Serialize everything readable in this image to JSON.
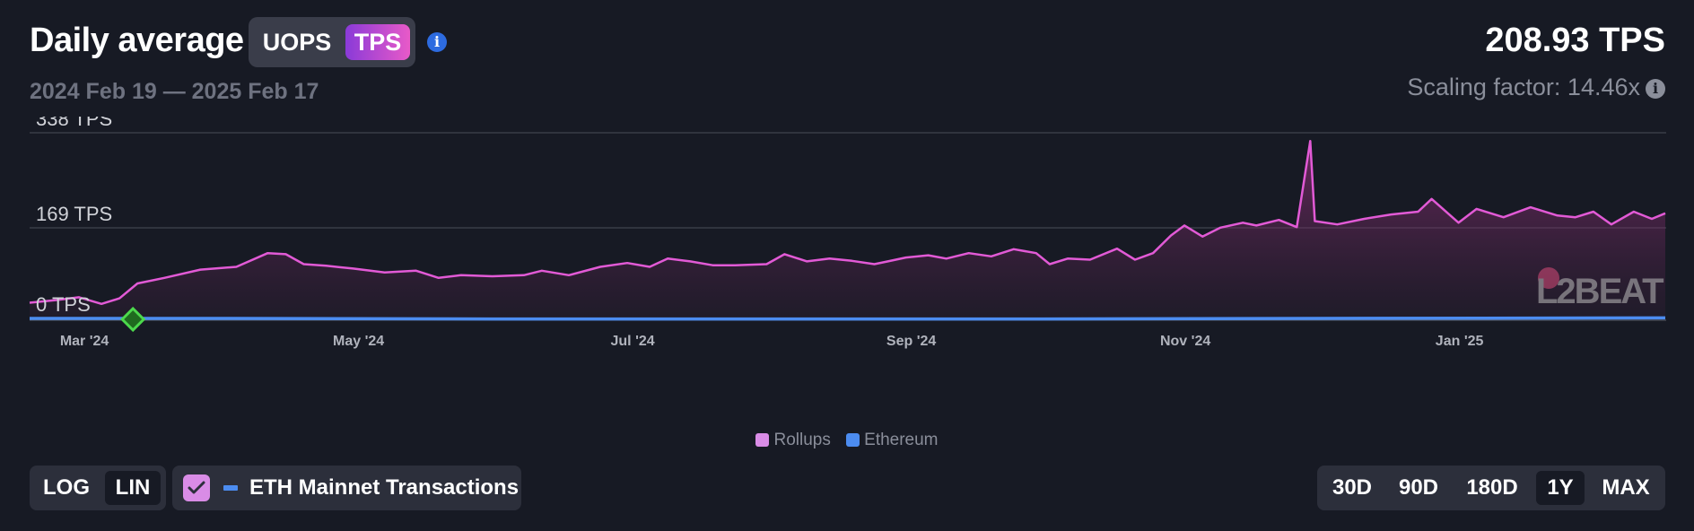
{
  "header": {
    "title": "Daily average",
    "unit_options": [
      "UOPS",
      "TPS"
    ],
    "selected_unit": "TPS",
    "date_range": "2024 Feb 19 — 2025 Feb 17",
    "value": "208.93 TPS",
    "scaling_factor": "Scaling factor: 14.46x",
    "info_icon": "info-icon"
  },
  "controls": {
    "scale_options": [
      "LOG",
      "LIN"
    ],
    "selected_scale": "LIN",
    "eth_toggle_label": "ETH Mainnet Transactions",
    "eth_toggle_checked": true,
    "range_options": [
      "30D",
      "90D",
      "180D",
      "1Y",
      "MAX"
    ],
    "selected_range": "1Y"
  },
  "colors": {
    "background": "#171a24",
    "rollups": "#e25ad6",
    "ethereum": "#4c8cf0",
    "accent_toggle": "#d98ce6",
    "milestone": "#4cd94c"
  },
  "chart_data": {
    "type": "area",
    "x_start": "2024-02-19",
    "x_end": "2025-02-17",
    "x_tick_labels": [
      {
        "date": "2024-03-01",
        "label": "Mar '24"
      },
      {
        "date": "2024-05-01",
        "label": "May '24"
      },
      {
        "date": "2024-07-01",
        "label": "Jul '24"
      },
      {
        "date": "2024-09-01",
        "label": "Sep '24"
      },
      {
        "date": "2024-11-01",
        "label": "Nov '24"
      },
      {
        "date": "2025-01-01",
        "label": "Jan '25"
      }
    ],
    "y_ticks": [
      {
        "value": 0,
        "label": "0 TPS"
      },
      {
        "value": 169,
        "label": "169 TPS"
      },
      {
        "value": 338,
        "label": "338 TPS"
      }
    ],
    "ylim": [
      0,
      338
    ],
    "grid": true,
    "legend_position": "bottom-center",
    "milestone": {
      "date": "2024-03-13",
      "icon": "milestone-diamond-icon"
    },
    "watermark": "L2BEAT",
    "series": [
      {
        "name": "Rollups",
        "color": "#e25ad6",
        "points": [
          [
            "2024-02-19",
            30
          ],
          [
            "2024-02-25",
            35
          ],
          [
            "2024-03-01",
            40
          ],
          [
            "2024-03-06",
            28
          ],
          [
            "2024-03-10",
            38
          ],
          [
            "2024-03-14",
            65
          ],
          [
            "2024-03-20",
            75
          ],
          [
            "2024-03-28",
            90
          ],
          [
            "2024-04-05",
            95
          ],
          [
            "2024-04-12",
            120
          ],
          [
            "2024-04-16",
            118
          ],
          [
            "2024-04-20",
            100
          ],
          [
            "2024-04-25",
            97
          ],
          [
            "2024-05-01",
            92
          ],
          [
            "2024-05-08",
            85
          ],
          [
            "2024-05-15",
            88
          ],
          [
            "2024-05-20",
            75
          ],
          [
            "2024-05-25",
            80
          ],
          [
            "2024-06-01",
            78
          ],
          [
            "2024-06-08",
            80
          ],
          [
            "2024-06-12",
            88
          ],
          [
            "2024-06-18",
            80
          ],
          [
            "2024-06-25",
            95
          ],
          [
            "2024-07-01",
            102
          ],
          [
            "2024-07-06",
            95
          ],
          [
            "2024-07-10",
            110
          ],
          [
            "2024-07-15",
            105
          ],
          [
            "2024-07-20",
            98
          ],
          [
            "2024-07-25",
            98
          ],
          [
            "2024-08-01",
            100
          ],
          [
            "2024-08-05",
            118
          ],
          [
            "2024-08-10",
            105
          ],
          [
            "2024-08-15",
            110
          ],
          [
            "2024-08-20",
            106
          ],
          [
            "2024-08-25",
            100
          ],
          [
            "2024-08-28",
            105
          ],
          [
            "2024-09-01",
            112
          ],
          [
            "2024-09-06",
            116
          ],
          [
            "2024-09-10",
            110
          ],
          [
            "2024-09-15",
            120
          ],
          [
            "2024-09-20",
            114
          ],
          [
            "2024-09-25",
            127
          ],
          [
            "2024-09-30",
            120
          ],
          [
            "2024-10-03",
            100
          ],
          [
            "2024-10-07",
            110
          ],
          [
            "2024-10-12",
            108
          ],
          [
            "2024-10-18",
            128
          ],
          [
            "2024-10-22",
            108
          ],
          [
            "2024-10-26",
            120
          ],
          [
            "2024-10-30",
            152
          ],
          [
            "2024-11-02",
            170
          ],
          [
            "2024-11-06",
            150
          ],
          [
            "2024-11-10",
            166
          ],
          [
            "2024-11-15",
            175
          ],
          [
            "2024-11-18",
            170
          ],
          [
            "2024-11-23",
            180
          ],
          [
            "2024-11-27",
            167
          ],
          [
            "2024-11-30",
            323
          ],
          [
            "2024-12-01",
            178
          ],
          [
            "2024-12-06",
            172
          ],
          [
            "2024-12-12",
            182
          ],
          [
            "2024-12-18",
            190
          ],
          [
            "2024-12-24",
            195
          ],
          [
            "2024-12-27",
            218
          ],
          [
            "2025-01-02",
            175
          ],
          [
            "2025-01-06",
            200
          ],
          [
            "2025-01-12",
            185
          ],
          [
            "2025-01-18",
            203
          ],
          [
            "2025-01-24",
            188
          ],
          [
            "2025-01-28",
            185
          ],
          [
            "2025-02-01",
            195
          ],
          [
            "2025-02-05",
            172
          ],
          [
            "2025-02-10",
            195
          ],
          [
            "2025-02-14",
            182
          ],
          [
            "2025-02-17",
            192
          ]
        ]
      },
      {
        "name": "Ethereum",
        "color": "#4c8cf0",
        "points": [
          [
            "2024-02-19",
            13
          ],
          [
            "2024-04-01",
            13
          ],
          [
            "2024-06-01",
            12
          ],
          [
            "2024-08-01",
            12
          ],
          [
            "2024-10-01",
            12
          ],
          [
            "2024-12-01",
            13
          ],
          [
            "2025-02-17",
            14
          ]
        ]
      }
    ]
  }
}
